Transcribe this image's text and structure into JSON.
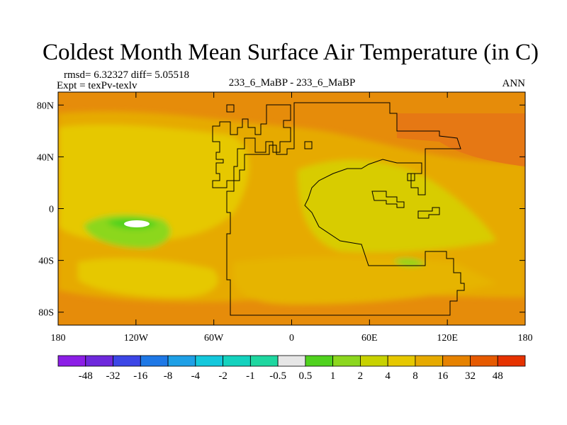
{
  "chart_data": {
    "type": "heatmap",
    "title": "Coldest Month Mean Surface Air Temperature (in C)",
    "stats_text": "rmsd= 6.32327 diff= 5.05518",
    "expt_label": "Expt = texPv-texlv",
    "center_label": "233_6_MaBP - 233_6_MaBP",
    "season_label": "ANN",
    "x_axis": {
      "range": [
        -180,
        180
      ],
      "ticks": [
        -180,
        -120,
        -60,
        0,
        60,
        120,
        180
      ],
      "tick_labels": [
        "180",
        "120W",
        "60W",
        "0",
        "60E",
        "120E",
        "180"
      ]
    },
    "y_axis": {
      "range": [
        -90,
        90
      ],
      "ticks": [
        80,
        40,
        0,
        -40,
        -80
      ],
      "tick_labels": [
        "80N",
        "40N",
        "0",
        "40S",
        "80S"
      ]
    },
    "colorbar": {
      "labels": [
        "-48",
        "-32",
        "-16",
        "-8",
        "-4",
        "-2",
        "-1",
        "-0.5",
        "0.5",
        "1",
        "2",
        "4",
        "8",
        "16",
        "32",
        "48"
      ],
      "colors": [
        "#8c1ee6",
        "#6e28dc",
        "#3c46e6",
        "#1e78e6",
        "#1ea0e6",
        "#14c8dc",
        "#14d2be",
        "#1ed7a0",
        "#e6e6e6",
        "#50d21e",
        "#8cd71e",
        "#c8d200",
        "#e6c800",
        "#e6aa00",
        "#e68200",
        "#e65a00",
        "#e63200"
      ]
    },
    "contour_regions": [
      {
        "level": "16",
        "color": "#e68200",
        "lon": [
          -180,
          180
        ],
        "lat": [
          -90,
          90
        ]
      },
      {
        "level": "8",
        "color": "#e6aa00",
        "lon": [
          -170,
          175
        ],
        "lat": [
          -82,
          82
        ]
      },
      {
        "level": "4",
        "color": "#e6c800",
        "lon": [
          -160,
          20
        ],
        "lat": [
          -60,
          65
        ]
      },
      {
        "level": "2",
        "color": "#c8d200",
        "lon": [
          20,
          100
        ],
        "lat": [
          -25,
          40
        ]
      },
      {
        "level": "1",
        "color": "#8cd71e",
        "lon": [
          -145,
          -100
        ],
        "lat": [
          -20,
          -5
        ]
      },
      {
        "level": "0.5",
        "color": "#50d21e",
        "lon": [
          -135,
          -115
        ],
        "lat": [
          -14,
          -8
        ]
      },
      {
        "level": "-0.5",
        "color": "#e6e6e6",
        "lon": [
          -128,
          -120
        ],
        "lat": [
          -12,
          -10
        ]
      }
    ]
  }
}
